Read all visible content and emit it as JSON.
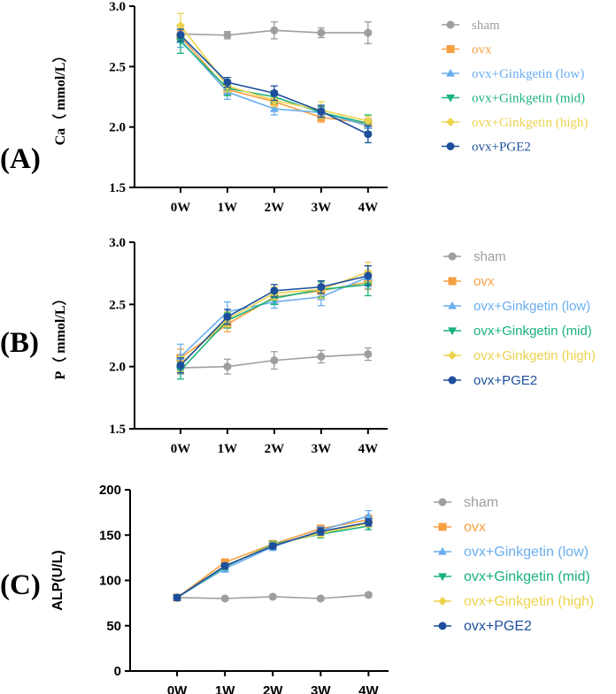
{
  "colors": {
    "sham": "#9e9e9e",
    "ovx": "#f7a042",
    "low": "#6aaeef",
    "mid": "#19b27a",
    "high": "#ecd34d",
    "pge2": "#1d4f9c",
    "axis": "#000000"
  },
  "chart_data": [
    {
      "type": "line",
      "panel_label": "(A)",
      "ylabel": "Ca（ mmol/L）",
      "ylim": [
        1.5,
        3.0
      ],
      "yticks": [
        "1.5",
        "2.0",
        "2.5",
        "3.0"
      ],
      "categories": [
        "0W",
        "1W",
        "2W",
        "3W",
        "4W"
      ],
      "series": [
        {
          "name": "sham",
          "marker": "circle",
          "values": [
            2.77,
            2.76,
            2.8,
            2.78,
            2.78
          ],
          "errors": [
            0.06,
            0.03,
            0.07,
            0.04,
            0.09
          ]
        },
        {
          "name": "ovx",
          "marker": "square",
          "values": [
            2.75,
            2.31,
            2.21,
            2.08,
            2.03
          ],
          "errors": [
            0.05,
            0.05,
            0.05,
            0.04,
            0.04
          ]
        },
        {
          "name": "ovx+Ginkgetin (low)",
          "marker": "triangle-up",
          "values": [
            2.72,
            2.29,
            2.15,
            2.12,
            2.01
          ],
          "errors": [
            0.06,
            0.06,
            0.05,
            0.04,
            0.05
          ]
        },
        {
          "name": "ovx+Ginkgetin (mid)",
          "marker": "triangle-down",
          "values": [
            2.71,
            2.32,
            2.25,
            2.12,
            2.03
          ],
          "errors": [
            0.1,
            0.06,
            0.05,
            0.05,
            0.07
          ]
        },
        {
          "name": "ovx+Ginkgetin (high)",
          "marker": "diamond",
          "values": [
            2.84,
            2.34,
            2.22,
            2.14,
            2.05
          ],
          "errors": [
            0.1,
            0.05,
            0.05,
            0.07,
            0.04
          ]
        },
        {
          "name": "ovx+PGE2",
          "marker": "circle",
          "values": [
            2.76,
            2.37,
            2.28,
            2.13,
            1.94
          ],
          "errors": [
            0.05,
            0.04,
            0.06,
            0.05,
            0.07
          ]
        }
      ]
    },
    {
      "type": "line",
      "panel_label": "(B)",
      "ylabel": "P（ mmol/L）",
      "ylim": [
        1.5,
        3.0
      ],
      "yticks": [
        "1.5",
        "2.0",
        "2.5",
        "3.0"
      ],
      "categories": [
        "0W",
        "1W",
        "2W",
        "3W",
        "4W"
      ],
      "series": [
        {
          "name": "sham",
          "marker": "circle",
          "values": [
            1.99,
            2.0,
            2.05,
            2.08,
            2.1
          ],
          "errors": [
            0.05,
            0.06,
            0.07,
            0.05,
            0.05
          ]
        },
        {
          "name": "ovx",
          "marker": "square",
          "values": [
            2.07,
            2.34,
            2.56,
            2.61,
            2.68
          ],
          "errors": [
            0.07,
            0.06,
            0.05,
            0.05,
            0.06
          ]
        },
        {
          "name": "ovx+Ginkgetin (low)",
          "marker": "triangle-up",
          "values": [
            2.08,
            2.44,
            2.52,
            2.56,
            2.72
          ],
          "errors": [
            0.1,
            0.08,
            0.05,
            0.07,
            0.09
          ]
        },
        {
          "name": "ovx+Ginkgetin (mid)",
          "marker": "triangle-down",
          "values": [
            1.97,
            2.37,
            2.55,
            2.62,
            2.66
          ],
          "errors": [
            0.07,
            0.06,
            0.05,
            0.06,
            0.09
          ]
        },
        {
          "name": "ovx+Ginkgetin (high)",
          "marker": "diamond",
          "values": [
            2.02,
            2.38,
            2.59,
            2.62,
            2.76
          ],
          "errors": [
            0.06,
            0.06,
            0.05,
            0.07,
            0.08
          ]
        },
        {
          "name": "ovx+PGE2",
          "marker": "circle",
          "values": [
            2.01,
            2.4,
            2.61,
            2.64,
            2.73
          ],
          "errors": [
            0.06,
            0.06,
            0.05,
            0.05,
            0.08
          ]
        }
      ]
    },
    {
      "type": "line",
      "panel_label": "(C)",
      "ylabel": "ALP(U/L)",
      "ylim": [
        0,
        200
      ],
      "yticks": [
        "0",
        "50",
        "100",
        "150",
        "200"
      ],
      "categories": [
        "0W",
        "1W",
        "2W",
        "3W",
        "4W"
      ],
      "series": [
        {
          "name": "sham",
          "marker": "circle",
          "values": [
            81,
            80,
            82,
            80,
            84
          ],
          "errors": [
            2,
            2,
            2,
            2,
            2
          ]
        },
        {
          "name": "ovx",
          "marker": "square",
          "values": [
            81,
            120,
            140,
            157,
            167
          ],
          "errors": [
            3,
            3,
            4,
            4,
            5
          ]
        },
        {
          "name": "ovx+Ginkgetin (low)",
          "marker": "triangle-up",
          "values": [
            81,
            113,
            137,
            155,
            171
          ],
          "errors": [
            3,
            4,
            4,
            4,
            6
          ]
        },
        {
          "name": "ovx+Ginkgetin (mid)",
          "marker": "triangle-down",
          "values": [
            81,
            115,
            140,
            151,
            160
          ],
          "errors": [
            3,
            3,
            3,
            4,
            4
          ]
        },
        {
          "name": "ovx+Ginkgetin (high)",
          "marker": "diamond",
          "values": [
            81,
            116,
            139,
            152,
            163
          ],
          "errors": [
            3,
            3,
            3,
            4,
            4
          ]
        },
        {
          "name": "ovx+PGE2",
          "marker": "circle",
          "values": [
            81,
            116,
            138,
            154,
            164
          ],
          "errors": [
            3,
            3,
            3,
            4,
            4
          ]
        }
      ]
    }
  ]
}
